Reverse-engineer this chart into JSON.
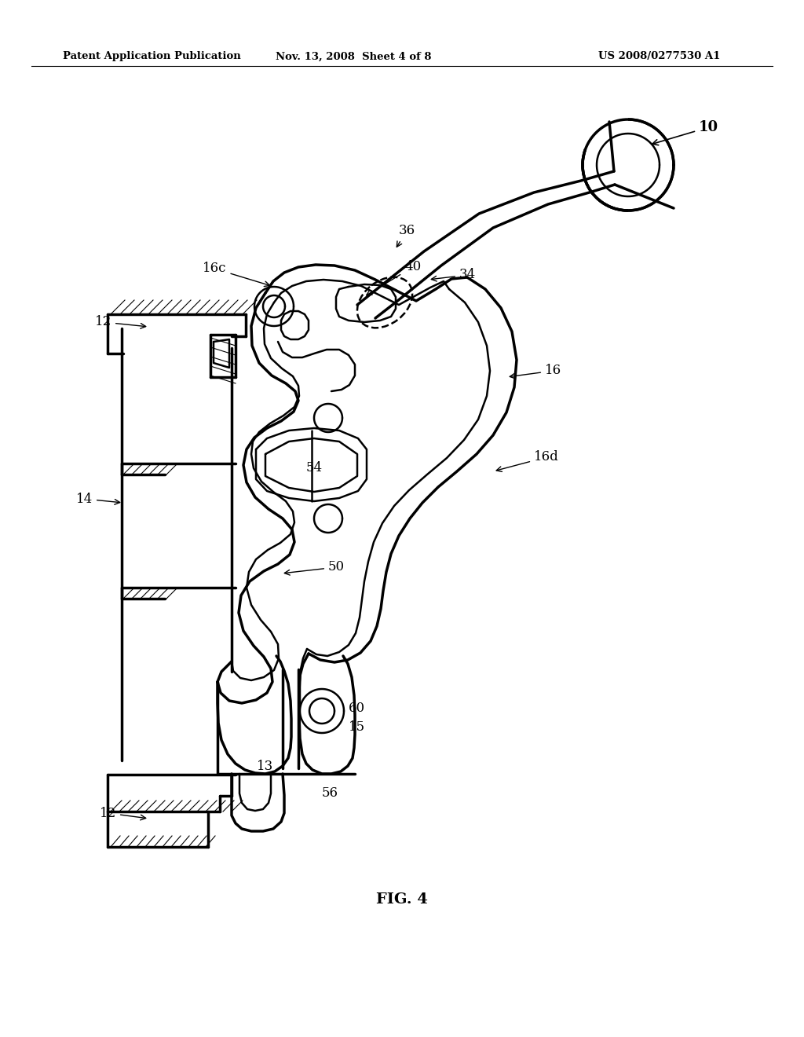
{
  "bg": "#ffffff",
  "lc": "#000000",
  "header_left": "Patent Application Publication",
  "header_center": "Nov. 13, 2008  Sheet 4 of 8",
  "header_right": "US 2008/0277530 A1",
  "fig_caption": "FIG. 4"
}
